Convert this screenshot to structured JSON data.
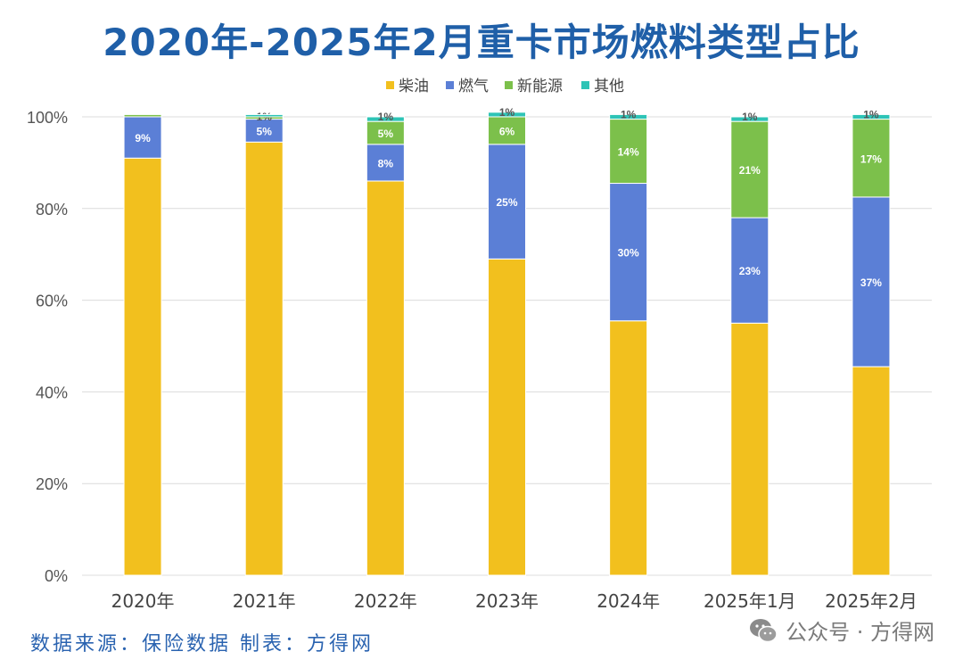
{
  "title": "2020年-2025年2月重卡市场燃料类型占比",
  "source": "数据来源：保险数据 制表：方得网",
  "watermark": {
    "text": "公众号 · 方得网",
    "icon": "wechat-icon"
  },
  "chart_data": {
    "type": "bar",
    "stacked": true,
    "title": "2020年-2025年2月重卡市场燃料类型占比",
    "categories": [
      "2020年",
      "2021年",
      "2022年",
      "2023年",
      "2024年",
      "2025年1月",
      "2025年2月"
    ],
    "series": [
      {
        "name": "柴油",
        "color": "#f2c01e",
        "values": [
          91,
          94.5,
          86,
          69,
          55.5,
          55,
          45.5
        ]
      },
      {
        "name": "燃气",
        "color": "#5b7fd6",
        "values": [
          9,
          5,
          8,
          25,
          30,
          23,
          37
        ]
      },
      {
        "name": "新能源",
        "color": "#7cc04b",
        "values": [
          0.5,
          0.5,
          5,
          6,
          14,
          21,
          17
        ]
      },
      {
        "name": "其他",
        "color": "#2ec4b6",
        "values": [
          0,
          0.5,
          1,
          1,
          1,
          1,
          1
        ]
      }
    ],
    "data_labels": [
      [
        "",
        "",
        "",
        ""
      ],
      [
        "",
        "5%",
        "1%",
        ""
      ],
      [
        "",
        "8%",
        "5%",
        "1%"
      ],
      [
        "",
        "25%",
        "6%",
        "1%"
      ],
      [
        "",
        "30%",
        "14%",
        "1%"
      ],
      [
        "",
        "23%",
        "21%",
        "1%"
      ],
      [
        "",
        "37%",
        "17%",
        "1%"
      ]
    ],
    "data_labels_2020": [
      "",
      "9%",
      "",
      ""
    ],
    "yticks": [
      "0%",
      "20%",
      "40%",
      "60%",
      "80%",
      "100%"
    ],
    "ylim": [
      0,
      100
    ],
    "legend": "top-center",
    "grid": true
  }
}
